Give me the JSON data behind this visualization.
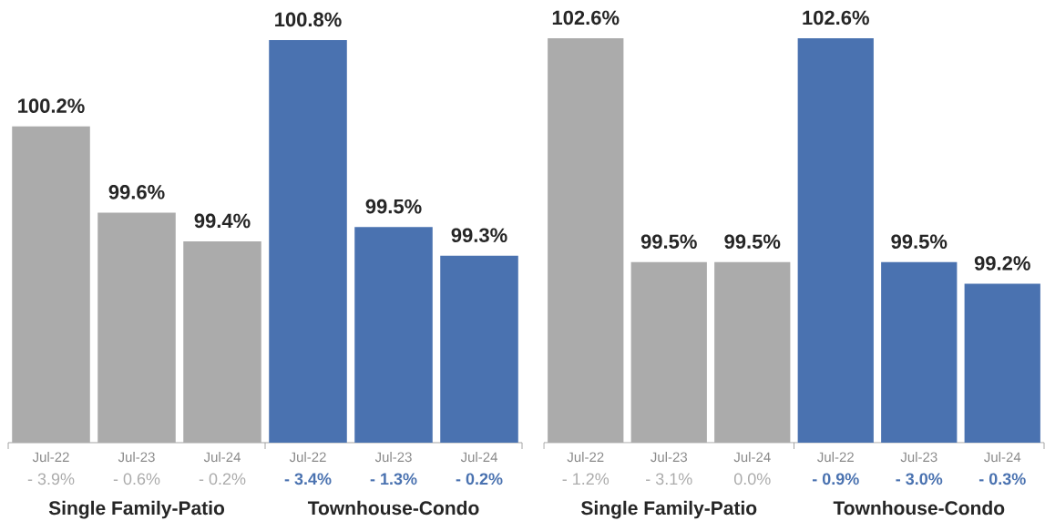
{
  "chart_data": [
    {
      "type": "bar",
      "categories": [
        "Single Family-Patio",
        "Townhouse-Condo"
      ],
      "series": [
        {
          "name": "Jul-22",
          "colors": [
            "#ababab",
            "#4a72b0"
          ],
          "values": [
            100.2,
            100.8
          ],
          "value_labels": [
            "100.2%",
            "100.8%"
          ]
        },
        {
          "name": "Jul-23",
          "colors": [
            "#ababab",
            "#4a72b0"
          ],
          "values": [
            99.6,
            99.5
          ],
          "value_labels": [
            "99.6%",
            "99.5%"
          ]
        },
        {
          "name": "Jul-24",
          "colors": [
            "#ababab",
            "#4a72b0"
          ],
          "values": [
            99.4,
            99.3
          ],
          "value_labels": [
            "99.4%",
            "99.3%"
          ]
        }
      ],
      "ylim": [
        98,
        100.8
      ],
      "tick_labels": "x",
      "annotations": [
        "- 3.9%",
        "- 0.6%",
        "- 0.2%",
        "- 3.4%",
        "- 1.3%",
        "- 0.2%"
      ]
    },
    {
      "type": "bar",
      "categories": [
        "Single Family-Patio",
        "Townhouse-Condo"
      ],
      "series": [
        {
          "name": "Jul-22",
          "colors": [
            "#ababab",
            "#4a72b0"
          ],
          "values": [
            102.6,
            102.6
          ],
          "value_labels": [
            "102.6%",
            "102.6%"
          ]
        },
        {
          "name": "Jul-23",
          "colors": [
            "#ababab",
            "#4a72b0"
          ],
          "values": [
            99.5,
            99.5
          ],
          "value_labels": [
            "99.5%",
            "99.5%"
          ]
        },
        {
          "name": "Jul-24",
          "colors": [
            "#ababab",
            "#4a72b0"
          ],
          "values": [
            99.5,
            99.2
          ],
          "value_labels": [
            "99.5%",
            "99.2%"
          ]
        }
      ],
      "ylim": [
        97,
        102.6
      ],
      "tick_labels": "x",
      "annotations": [
        "- 1.2%",
        "- 3.1%",
        "0.0%",
        "- 0.9%",
        "- 3.0%",
        "- 0.3%"
      ]
    }
  ]
}
